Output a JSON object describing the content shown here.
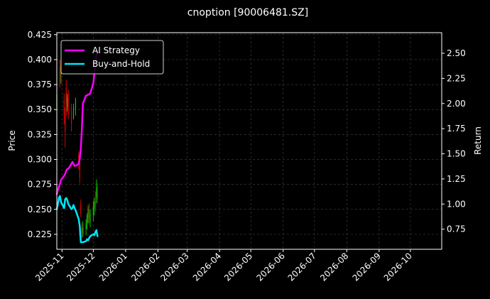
{
  "chart_data": {
    "type": "line",
    "title": "cnoption [90006481.SZ]",
    "ylabel_left": "Price",
    "ylabel_right": "Return",
    "grid": true,
    "legend_placement": "top-left",
    "x_ticks": [
      "2025-11",
      "2025-12",
      "2026-01",
      "2026-02",
      "2026-03",
      "2026-04",
      "2026-05",
      "2026-06",
      "2026-07",
      "2026-08",
      "2026-09",
      "2026-10"
    ],
    "xlim": [
      "2025-10-27",
      "2026-10-31"
    ],
    "left_ylim": [
      0.21,
      0.427
    ],
    "left_ticks": [
      "0.225",
      "0.250",
      "0.275",
      "0.300",
      "0.325",
      "0.350",
      "0.375",
      "0.400",
      "0.425"
    ],
    "right_ylim": [
      0.55,
      2.705
    ],
    "right_ticks": [
      "0.75",
      "1.00",
      "1.25",
      "1.50",
      "1.75",
      "2.00",
      "2.25",
      "2.50"
    ],
    "colors": {
      "background": "#000000",
      "grid": "#3a3a3a",
      "up_candle": "#00c800",
      "down_candle": "#e00000",
      "ai_strategy": "#ff00ff",
      "buy_and_hold": "#00e5ff"
    },
    "series": [
      {
        "name": "AI Strategy",
        "axis": "right",
        "color": "#ff00ff",
        "points": [
          [
            "2025-10-27",
            1.1
          ],
          [
            "2025-10-28",
            1.14
          ],
          [
            "2025-10-29",
            1.17
          ],
          [
            "2025-10-30",
            1.2
          ],
          [
            "2025-10-31",
            1.24
          ],
          [
            "2025-11-03",
            1.28
          ],
          [
            "2025-11-04",
            1.3
          ],
          [
            "2025-11-05",
            1.33
          ],
          [
            "2025-11-06",
            1.35
          ],
          [
            "2025-11-07",
            1.35
          ],
          [
            "2025-11-10",
            1.4
          ],
          [
            "2025-11-11",
            1.42
          ],
          [
            "2025-11-12",
            1.4
          ],
          [
            "2025-11-13",
            1.38
          ],
          [
            "2025-11-14",
            1.38
          ],
          [
            "2025-11-17",
            1.4
          ],
          [
            "2025-11-18",
            1.45
          ],
          [
            "2025-11-19",
            1.55
          ],
          [
            "2025-11-20",
            1.75
          ],
          [
            "2025-11-21",
            2.0
          ],
          [
            "2025-11-24",
            2.08
          ],
          [
            "2025-11-25",
            2.08
          ],
          [
            "2025-11-26",
            2.09
          ],
          [
            "2025-11-27",
            2.09
          ],
          [
            "2025-11-28",
            2.1
          ],
          [
            "2025-12-01",
            2.2
          ],
          [
            "2025-12-02",
            2.3
          ],
          [
            "2025-12-03",
            2.42
          ],
          [
            "2025-12-04",
            2.48
          ],
          [
            "2025-12-05",
            2.52
          ]
        ]
      },
      {
        "name": "Buy-and-Hold",
        "axis": "right",
        "color": "#00e5ff",
        "points": [
          [
            "2025-10-27",
            0.95
          ],
          [
            "2025-10-28",
            1.0
          ],
          [
            "2025-10-29",
            1.06
          ],
          [
            "2025-10-30",
            1.08
          ],
          [
            "2025-10-31",
            1.02
          ],
          [
            "2025-11-03",
            0.96
          ],
          [
            "2025-11-04",
            1.05
          ],
          [
            "2025-11-05",
            1.06
          ],
          [
            "2025-11-06",
            1.04
          ],
          [
            "2025-11-07",
            1.0
          ],
          [
            "2025-11-10",
            0.95
          ],
          [
            "2025-11-11",
            0.96
          ],
          [
            "2025-11-12",
            0.99
          ],
          [
            "2025-11-13",
            0.96
          ],
          [
            "2025-11-14",
            0.94
          ],
          [
            "2025-11-17",
            0.85
          ],
          [
            "2025-11-18",
            0.78
          ],
          [
            "2025-11-19",
            0.62
          ],
          [
            "2025-11-20",
            0.62
          ],
          [
            "2025-11-21",
            0.62
          ],
          [
            "2025-11-24",
            0.63
          ],
          [
            "2025-11-25",
            0.65
          ],
          [
            "2025-11-26",
            0.64
          ],
          [
            "2025-11-27",
            0.66
          ],
          [
            "2025-11-28",
            0.68
          ],
          [
            "2025-12-01",
            0.7
          ],
          [
            "2025-12-02",
            0.69
          ],
          [
            "2025-12-03",
            0.72
          ],
          [
            "2025-12-04",
            0.74
          ],
          [
            "2025-12-05",
            0.68
          ]
        ]
      }
    ],
    "candles": [
      {
        "date": "2025-10-27",
        "open": 0.352,
        "close": 0.365,
        "high": 0.368,
        "low": 0.35
      },
      {
        "date": "2025-10-30",
        "open": 0.392,
        "close": 0.378,
        "high": 0.4,
        "low": 0.372
      },
      {
        "date": "2025-10-31",
        "open": 0.385,
        "close": 0.394,
        "high": 0.398,
        "low": 0.376
      },
      {
        "date": "2025-11-03",
        "open": 0.36,
        "close": 0.345,
        "high": 0.366,
        "low": 0.335
      },
      {
        "date": "2025-11-04",
        "open": 0.345,
        "close": 0.328,
        "high": 0.352,
        "low": 0.312
      },
      {
        "date": "2025-11-05",
        "open": 0.372,
        "close": 0.356,
        "high": 0.38,
        "low": 0.344
      },
      {
        "date": "2025-11-06",
        "open": 0.352,
        "close": 0.362,
        "high": 0.366,
        "low": 0.348
      },
      {
        "date": "2025-11-07",
        "open": 0.365,
        "close": 0.346,
        "high": 0.37,
        "low": 0.34
      },
      {
        "date": "2025-11-10",
        "open": 0.348,
        "close": 0.336,
        "high": 0.356,
        "low": 0.328
      },
      {
        "date": "2025-11-12",
        "open": 0.342,
        "close": 0.352,
        "high": 0.356,
        "low": 0.34
      },
      {
        "date": "2025-11-14",
        "open": 0.35,
        "close": 0.36,
        "high": 0.362,
        "low": 0.344
      },
      {
        "date": "2025-11-17",
        "open": 0.305,
        "close": 0.296,
        "high": 0.308,
        "low": 0.29
      },
      {
        "date": "2025-11-18",
        "open": 0.3,
        "close": 0.282,
        "high": 0.304,
        "low": 0.276
      },
      {
        "date": "2025-11-19",
        "open": 0.255,
        "close": 0.246,
        "high": 0.26,
        "low": 0.242
      },
      {
        "date": "2025-11-20",
        "open": 0.232,
        "close": 0.225,
        "high": 0.236,
        "low": 0.222
      },
      {
        "date": "2025-11-21",
        "open": 0.226,
        "close": 0.232,
        "high": 0.238,
        "low": 0.222
      },
      {
        "date": "2025-11-24",
        "open": 0.23,
        "close": 0.236,
        "high": 0.24,
        "low": 0.224
      },
      {
        "date": "2025-11-25",
        "open": 0.236,
        "close": 0.244,
        "high": 0.246,
        "low": 0.23
      },
      {
        "date": "2025-11-26",
        "open": 0.242,
        "close": 0.25,
        "high": 0.254,
        "low": 0.236
      },
      {
        "date": "2025-11-27",
        "open": 0.248,
        "close": 0.24,
        "high": 0.256,
        "low": 0.236
      },
      {
        "date": "2025-11-28",
        "open": 0.238,
        "close": 0.246,
        "high": 0.25,
        "low": 0.232
      },
      {
        "date": "2025-12-01",
        "open": 0.244,
        "close": 0.252,
        "high": 0.258,
        "low": 0.238
      },
      {
        "date": "2025-12-02",
        "open": 0.25,
        "close": 0.258,
        "high": 0.262,
        "low": 0.244
      },
      {
        "date": "2025-12-03",
        "open": 0.258,
        "close": 0.252,
        "high": 0.268,
        "low": 0.248
      },
      {
        "date": "2025-12-04",
        "open": 0.262,
        "close": 0.272,
        "high": 0.28,
        "low": 0.256
      },
      {
        "date": "2025-12-05",
        "open": 0.268,
        "close": 0.26,
        "high": 0.276,
        "low": 0.256
      }
    ]
  }
}
